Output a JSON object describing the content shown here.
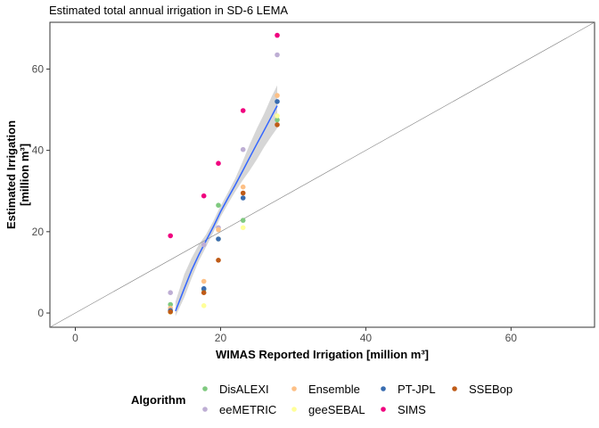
{
  "chart_data": {
    "type": "scatter",
    "title": "Estimated total annual irrigation in SD-6 LEMA",
    "xlabel": "WIMAS Reported Irrigation [million m³]",
    "ylabel_line1": "Estimated Irrigation",
    "ylabel_line2": "[million m³]",
    "xlim": [
      -3.5,
      71.5
    ],
    "ylim": [
      -3.5,
      71.5
    ],
    "x_ticks": [
      0,
      20,
      40,
      60
    ],
    "y_ticks": [
      0,
      20,
      40,
      60
    ],
    "grid": false,
    "reference_line": "y = x",
    "legend": {
      "title": "Algorithm",
      "position": "bottom"
    },
    "series": [
      {
        "name": "DisALEXI",
        "color": "#7fc97f",
        "x": [
          13.1,
          17.7,
          19.7,
          23.1,
          27.8
        ],
        "y": [
          2.1,
          5.8,
          26.5,
          22.8,
          47.5
        ]
      },
      {
        "name": "eeMETRIC",
        "color": "#beaed4",
        "x": [
          13.1,
          17.7,
          19.7,
          23.1,
          27.8
        ],
        "y": [
          5.0,
          16.8,
          21.0,
          40.2,
          63.5
        ]
      },
      {
        "name": "Ensemble",
        "color": "#fdc086",
        "x": [
          13.1,
          17.7,
          19.7,
          23.1,
          27.8
        ],
        "y": [
          1.2,
          7.8,
          20.5,
          31.0,
          53.5
        ]
      },
      {
        "name": "geeSEBAL",
        "color": "#ffff99",
        "x": [
          13.1,
          17.7,
          19.7,
          23.1,
          27.8
        ],
        "y": [
          0.2,
          1.8,
          18.2,
          21.0,
          48.5
        ]
      },
      {
        "name": "PT-JPL",
        "color": "#386cb0",
        "x": [
          13.1,
          17.7,
          19.7,
          23.1,
          27.8
        ],
        "y": [
          0.6,
          6.0,
          18.2,
          28.3,
          52.0
        ]
      },
      {
        "name": "SIMS",
        "color": "#f0027f",
        "x": [
          13.1,
          17.7,
          19.7,
          23.1,
          27.8
        ],
        "y": [
          19.0,
          28.8,
          36.8,
          49.8,
          68.3
        ]
      },
      {
        "name": "SSEBop",
        "color": "#bf5b17",
        "x": [
          13.1,
          17.7,
          19.7,
          23.1,
          27.8
        ],
        "y": [
          0.3,
          5.0,
          13.0,
          29.5,
          46.3
        ]
      }
    ],
    "fit": {
      "method": "linear",
      "color": "#3366ff",
      "ribbon_color": "#999999",
      "x": [
        13.8,
        15.0,
        16.0,
        17.0,
        18.0,
        19.0,
        20.0,
        21.0,
        22.0,
        23.0,
        24.0,
        25.0,
        26.0,
        27.0,
        27.8
      ],
      "y": [
        0.5,
        6.0,
        10.5,
        14.3,
        17.8,
        21.2,
        24.9,
        28.2,
        31.4,
        34.8,
        38.2,
        41.6,
        44.9,
        48.3,
        51.0
      ],
      "lower": [
        -0.8,
        3.8,
        8.5,
        12.8,
        16.3,
        19.8,
        23.6,
        26.8,
        29.8,
        32.5,
        35.0,
        37.8,
        40.8,
        43.5,
        45.5
      ],
      "upper": [
        2.8,
        9.5,
        13.5,
        16.8,
        19.3,
        22.6,
        26.3,
        29.6,
        33.0,
        37.1,
        41.4,
        45.4,
        49.0,
        53.1,
        56.0
      ]
    }
  }
}
